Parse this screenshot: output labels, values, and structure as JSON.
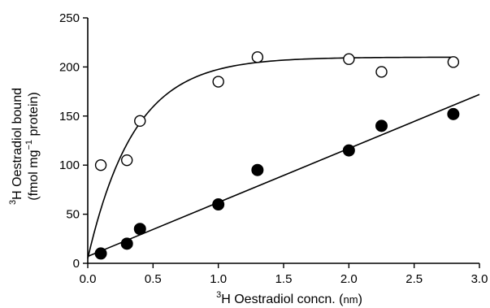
{
  "chart_data": {
    "type": "scatter",
    "xlabel": {
      "prefix_sup": "3",
      "text": "H Oestradiol concn. (",
      "unit_small": "nm",
      "suffix": ")"
    },
    "ylabel": {
      "line1_sup": "3",
      "line1": "H Oestradiol bound",
      "line2a": "(fmol mg",
      "line2_sup": "−1",
      "line2b": " protein)"
    },
    "xlim": [
      0,
      3.0
    ],
    "ylim": [
      0,
      250
    ],
    "x_ticks": [
      "0.0",
      "0.5",
      "1.0",
      "1.5",
      "2.0",
      "2.5",
      "3.0"
    ],
    "y_ticks": [
      "0",
      "50",
      "100",
      "150",
      "200",
      "250"
    ],
    "x_tick_values": [
      0,
      0.5,
      1.0,
      1.5,
      2.0,
      2.5,
      3.0
    ],
    "y_tick_values": [
      0,
      50,
      100,
      150,
      200,
      250
    ],
    "series": [
      {
        "marker": "open-circle",
        "x": [
          0.1,
          0.3,
          0.4,
          1.0,
          1.3,
          2.0,
          2.25,
          2.8
        ],
        "y": [
          100,
          105,
          145,
          185,
          210,
          208,
          195,
          205
        ],
        "fit": "saturation",
        "fit_params": {
          "bmax": 210,
          "k": 2.8,
          "y0": 5
        }
      },
      {
        "marker": "filled-circle",
        "x": [
          0.1,
          0.3,
          0.4,
          1.0,
          1.3,
          2.0,
          2.25,
          2.8
        ],
        "y": [
          10,
          20,
          35,
          60,
          95,
          115,
          140,
          152
        ],
        "fit": "linear",
        "fit_params": {
          "slope": 55,
          "intercept": 7
        }
      }
    ],
    "grid": false
  }
}
